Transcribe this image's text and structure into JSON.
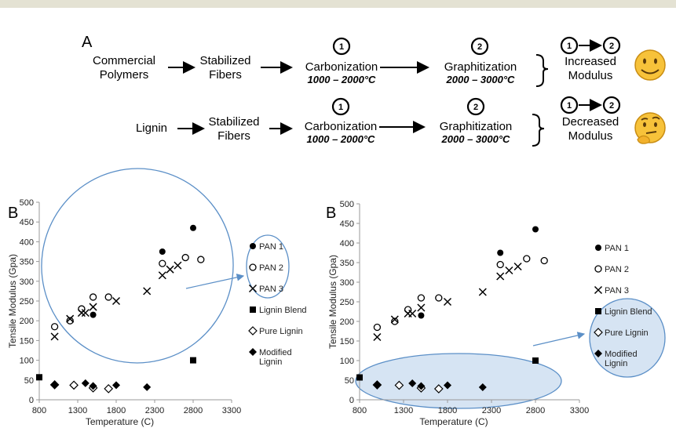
{
  "flow": {
    "panel_label": "A",
    "rows": [
      {
        "start_lines": [
          "Commercial",
          "Polymers"
        ],
        "stabilized_lines": [
          "Stabilized",
          "Fibers"
        ],
        "step1_number": "1",
        "step1_label": "Carbonization",
        "step1_temp": "1000 – 2000°C",
        "step2_number": "2",
        "step2_label": "Graphitization",
        "step2_temp": "2000 – 3000°C",
        "outcome_from": "1",
        "outcome_to": "2",
        "outcome_lines": [
          "Increased",
          "Modulus"
        ],
        "emoji": "smiling-face-icon"
      },
      {
        "start_lines": [
          "Lignin"
        ],
        "stabilized_lines": [
          "Stabilized",
          "Fibers"
        ],
        "step1_number": "1",
        "step1_label": "Carbonization",
        "step1_temp": "1000 – 2000°C",
        "step2_number": "2",
        "step2_label": "Graphitization",
        "step2_temp": "2000 – 3000°C",
        "outcome_from": "1",
        "outcome_to": "2",
        "outcome_lines": [
          "Decreased",
          "Modulus"
        ],
        "emoji": "thinking-face-icon"
      }
    ]
  },
  "chart_data": [
    {
      "type": "scatter",
      "panel_label": "B",
      "xlabel": "Temperature (C)",
      "ylabel": "Tensile Modulus (Gpa)",
      "xlim": [
        800,
        3300
      ],
      "ylim": [
        0,
        500
      ],
      "xticks": [
        800,
        1300,
        1800,
        2300,
        2800,
        3300
      ],
      "yticks": [
        0,
        50,
        100,
        150,
        200,
        250,
        300,
        350,
        400,
        450,
        500
      ],
      "highlight": "PAN series circled",
      "legend_position": "right",
      "series": [
        {
          "name": "PAN 1",
          "marker": "filled-circle",
          "x": [
            1500,
            2400,
            2800
          ],
          "y": [
            215,
            375,
            435
          ]
        },
        {
          "name": "PAN 2",
          "marker": "open-circle",
          "x": [
            1000,
            1200,
            1350,
            1500,
            1700,
            2400,
            2700,
            2900
          ],
          "y": [
            185,
            200,
            230,
            260,
            260,
            345,
            360,
            355
          ]
        },
        {
          "name": "PAN 3",
          "marker": "cross",
          "x": [
            1000,
            1200,
            1350,
            1400,
            1500,
            1800,
            2200,
            2400,
            2500,
            2600
          ],
          "y": [
            160,
            205,
            220,
            220,
            235,
            250,
            275,
            315,
            330,
            340
          ]
        },
        {
          "name": "Lignin Blend",
          "marker": "filled-square",
          "x": [
            800,
            2800
          ],
          "y": [
            57,
            100
          ]
        },
        {
          "name": "Pure Lignin",
          "marker": "open-diamond",
          "x": [
            1000,
            1250,
            1500,
            1700
          ],
          "y": [
            38,
            37,
            30,
            28
          ]
        },
        {
          "name": "Modified Lignin",
          "marker": "filled-diamond",
          "x": [
            1000,
            1400,
            1500,
            1800,
            2200
          ],
          "y": [
            38,
            42,
            35,
            37,
            32
          ]
        }
      ]
    },
    {
      "type": "scatter",
      "panel_label": "B",
      "xlabel": "Temperature (C)",
      "ylabel": "Tensile Modulus (Gpa)",
      "xlim": [
        800,
        3300
      ],
      "ylim": [
        0,
        500
      ],
      "xticks": [
        800,
        1300,
        1800,
        2300,
        2800,
        3300
      ],
      "yticks": [
        0,
        50,
        100,
        150,
        200,
        250,
        300,
        350,
        400,
        450,
        500
      ],
      "highlight": "Lignin series circled",
      "legend_position": "right",
      "series": [
        {
          "name": "PAN 1",
          "marker": "filled-circle",
          "x": [
            1500,
            2400,
            2800
          ],
          "y": [
            215,
            375,
            435
          ]
        },
        {
          "name": "PAN 2",
          "marker": "open-circle",
          "x": [
            1000,
            1200,
            1350,
            1500,
            1700,
            2400,
            2700,
            2900
          ],
          "y": [
            185,
            200,
            230,
            260,
            260,
            345,
            360,
            355
          ]
        },
        {
          "name": "PAN 3",
          "marker": "cross",
          "x": [
            1000,
            1200,
            1350,
            1400,
            1500,
            1800,
            2200,
            2400,
            2500,
            2600
          ],
          "y": [
            160,
            205,
            220,
            220,
            235,
            250,
            275,
            315,
            330,
            340
          ]
        },
        {
          "name": "Lignin Blend",
          "marker": "filled-square",
          "x": [
            800,
            2800
          ],
          "y": [
            57,
            100
          ]
        },
        {
          "name": "Pure Lignin",
          "marker": "open-diamond",
          "x": [
            1000,
            1250,
            1500,
            1700
          ],
          "y": [
            38,
            37,
            30,
            28
          ]
        },
        {
          "name": "Modified Lignin",
          "marker": "filled-diamond",
          "x": [
            1000,
            1400,
            1500,
            1800,
            2200
          ],
          "y": [
            38,
            42,
            35,
            37,
            32
          ]
        }
      ]
    }
  ],
  "colors": {
    "highlight_stroke": "#5b8fc7",
    "highlight_fill": "#d6e4f3",
    "emoji_fill": "#f7c23a",
    "emoji_stroke": "#c98d13",
    "top_bar": "#e4e2d3"
  }
}
